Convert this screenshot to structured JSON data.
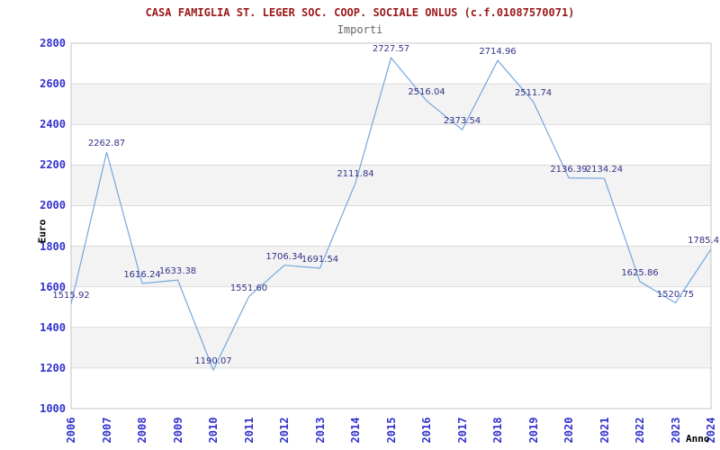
{
  "header": {
    "title": "CASA FAMIGLIA ST. LEGER SOC. COOP. SOCIALE ONLUS (c.f.01087570071)",
    "subtitle": "Importi"
  },
  "chart_data": {
    "type": "line",
    "title": "CASA FAMIGLIA ST. LEGER SOC. COOP. SOCIALE ONLUS (c.f.01087570071)",
    "subtitle": "Importi",
    "xlabel": "Anno",
    "ylabel": "Euro",
    "categories": [
      "2006",
      "2007",
      "2008",
      "2009",
      "2010",
      "2011",
      "2012",
      "2013",
      "2014",
      "2015",
      "2016",
      "2017",
      "2018",
      "2019",
      "2020",
      "2021",
      "2022",
      "2023",
      "2024"
    ],
    "values": [
      1515.92,
      2262.87,
      1616.24,
      1633.38,
      1190.07,
      1551.6,
      1706.34,
      1691.54,
      2111.84,
      2727.57,
      2516.04,
      2373.54,
      2714.96,
      2511.74,
      2136.39,
      2134.24,
      1625.86,
      1520.75,
      1785.4
    ],
    "point_labels": [
      "1515.92",
      "2262.87",
      "1616.24",
      "1633.38",
      "1190.07",
      "1551.60",
      "1706.34",
      "1691.54",
      "2111.84",
      "2727.57",
      "2516.04",
      "2373.54",
      "2714.96",
      "2511.74",
      "2136.39",
      "2134.24",
      "1625.86",
      "1520.75",
      "1785.4"
    ],
    "ylim": [
      1000,
      2800
    ],
    "y_tick_step": 200,
    "y_tick_labels": [
      "1000",
      "1200",
      "1400",
      "1600",
      "1800",
      "2000",
      "2200",
      "2400",
      "2600",
      "2800"
    ],
    "grid": "horizontal-with-alternating-bands",
    "legend": "none",
    "colors": {
      "line": "#74a7dc",
      "tick_label": "#3232cd",
      "point_label": "#333388",
      "title": "#9a1818",
      "subtitle": "#666666",
      "band": "#f3f3f3",
      "gridline": "#dcdcdc",
      "plot_border": "#c6c6c6",
      "background": "#ffffff"
    }
  }
}
